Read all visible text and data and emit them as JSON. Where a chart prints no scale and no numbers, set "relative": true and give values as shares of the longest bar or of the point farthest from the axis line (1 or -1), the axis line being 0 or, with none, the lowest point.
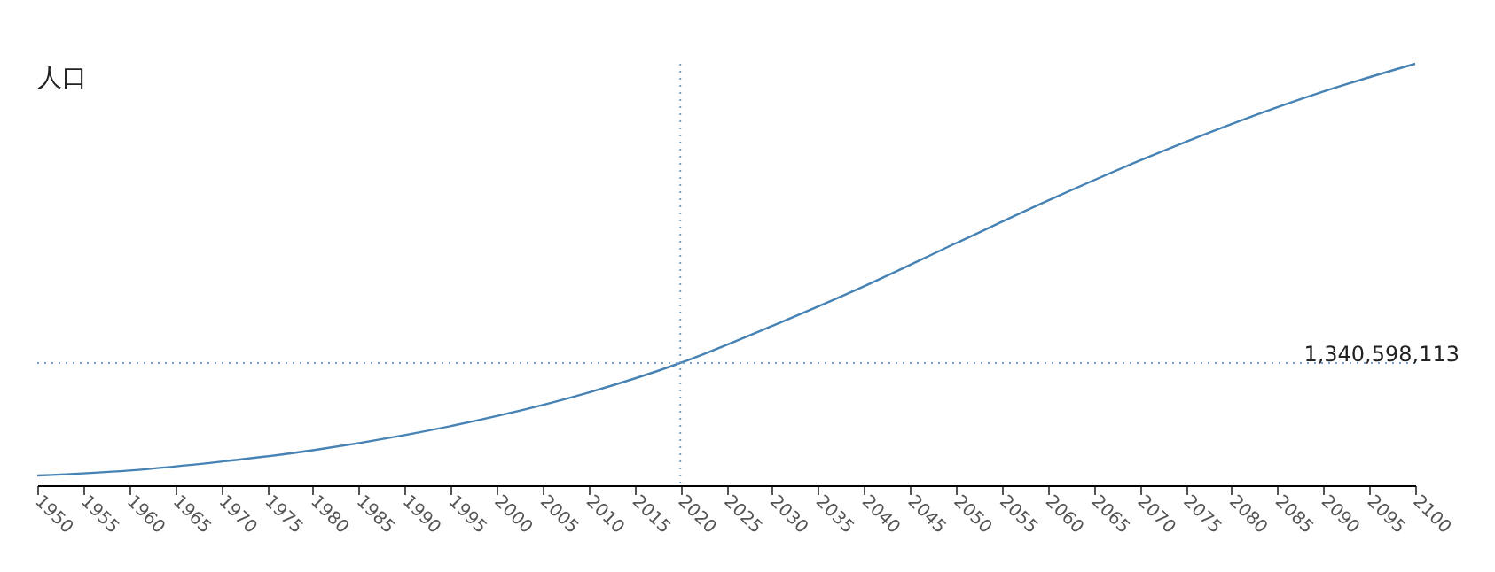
{
  "chart_data": {
    "type": "line",
    "title": "人口",
    "relative": true,
    "x": [
      1950,
      1960,
      1970,
      1980,
      1990,
      2000,
      2010,
      2020,
      2030,
      2040,
      2050,
      2060,
      2070,
      2080,
      2090,
      2100
    ],
    "series": [
      {
        "color": "#4682b4",
        "values": [
          0.023,
          0.035,
          0.056,
          0.083,
          0.119,
          0.164,
          0.22,
          0.29,
          0.378,
          0.472,
          0.574,
          0.675,
          0.77,
          0.857,
          0.934,
          1
        ]
      }
    ],
    "xlim": [
      1950,
      2100
    ],
    "xticks": [
      1950,
      1955,
      1960,
      1965,
      1970,
      1975,
      1980,
      1985,
      1990,
      1995,
      2000,
      2005,
      2010,
      2015,
      2020,
      2025,
      2030,
      2035,
      2040,
      2045,
      2050,
      2055,
      2060,
      2065,
      2070,
      2075,
      2080,
      2085,
      2090,
      2095,
      2100
    ],
    "ref_lines": [
      {
        "axis": "x",
        "value": 2020,
        "color": "#7f9fbf",
        "line_style": "dotted"
      },
      {
        "axis": "y",
        "value": 0.29,
        "color": "#6f9fce",
        "line_style": "dotted"
      }
    ],
    "annotations": [
      "1,340,598,113"
    ],
    "grid": false,
    "marker": "none",
    "line_style": "solid"
  }
}
